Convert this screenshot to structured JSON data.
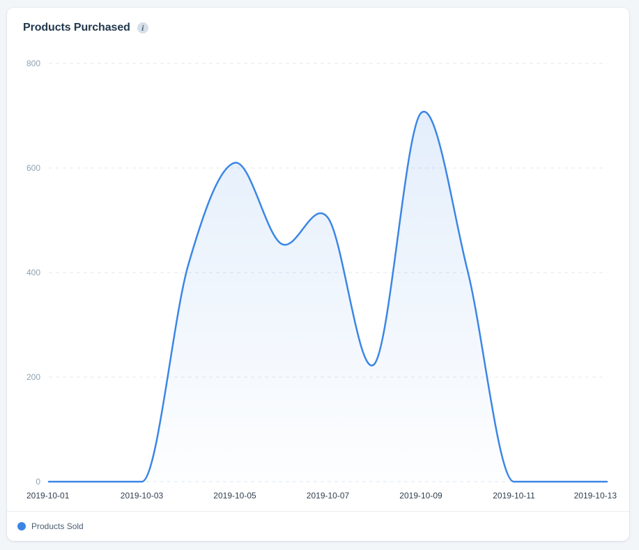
{
  "card": {
    "title": "Products Purchased",
    "info_icon": "info-icon"
  },
  "legend": {
    "label": "Products Sold",
    "color": "#3b86e5"
  },
  "chart_data": {
    "type": "area",
    "title": "Products Purchased",
    "xlabel": "",
    "ylabel": "",
    "ylim": [
      0,
      800
    ],
    "y_ticks": [
      "0",
      "200",
      "400",
      "600",
      "800"
    ],
    "x_tick_labels": [
      "2019-10-01",
      "2019-10-03",
      "2019-10-05",
      "2019-10-07",
      "2019-10-09",
      "2019-10-11",
      "2019-10-13"
    ],
    "grid": "horizontal dashed",
    "legend_position": "bottom-left",
    "smooth": true,
    "x": [
      "2019-10-01",
      "2019-10-02",
      "2019-10-03",
      "2019-10-04",
      "2019-10-05",
      "2019-10-06",
      "2019-10-07",
      "2019-10-08",
      "2019-10-09",
      "2019-10-10",
      "2019-10-11",
      "2019-10-12",
      "2019-10-13"
    ],
    "series": [
      {
        "name": "Products Sold",
        "color": "#3b86e5",
        "values": [
          0,
          0,
          0,
          415,
          610,
          455,
          505,
          225,
          705,
          405,
          0,
          0,
          0
        ]
      }
    ]
  }
}
